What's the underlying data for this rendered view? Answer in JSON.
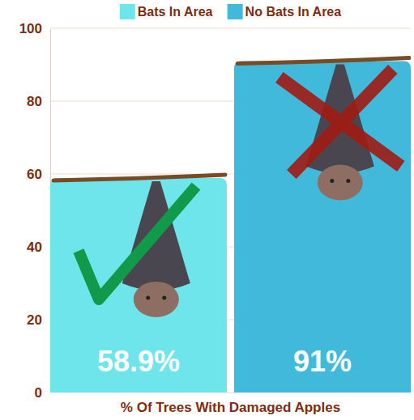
{
  "chart_data": {
    "type": "bar",
    "categories": [
      "Bats In Area",
      "No Bats In Area"
    ],
    "values": [
      58.9,
      91
    ],
    "value_labels": [
      "58.9%",
      "91%"
    ],
    "colors": [
      "#6ee5ea",
      "#41b9db"
    ],
    "x_label": "% Of Trees With Damaged Apples",
    "ylim": [
      0,
      100
    ],
    "yticks": [
      0,
      20,
      40,
      60,
      80,
      100
    ],
    "grid": true,
    "legend": "top",
    "data_labels": true,
    "tick_labels": "y"
  }
}
